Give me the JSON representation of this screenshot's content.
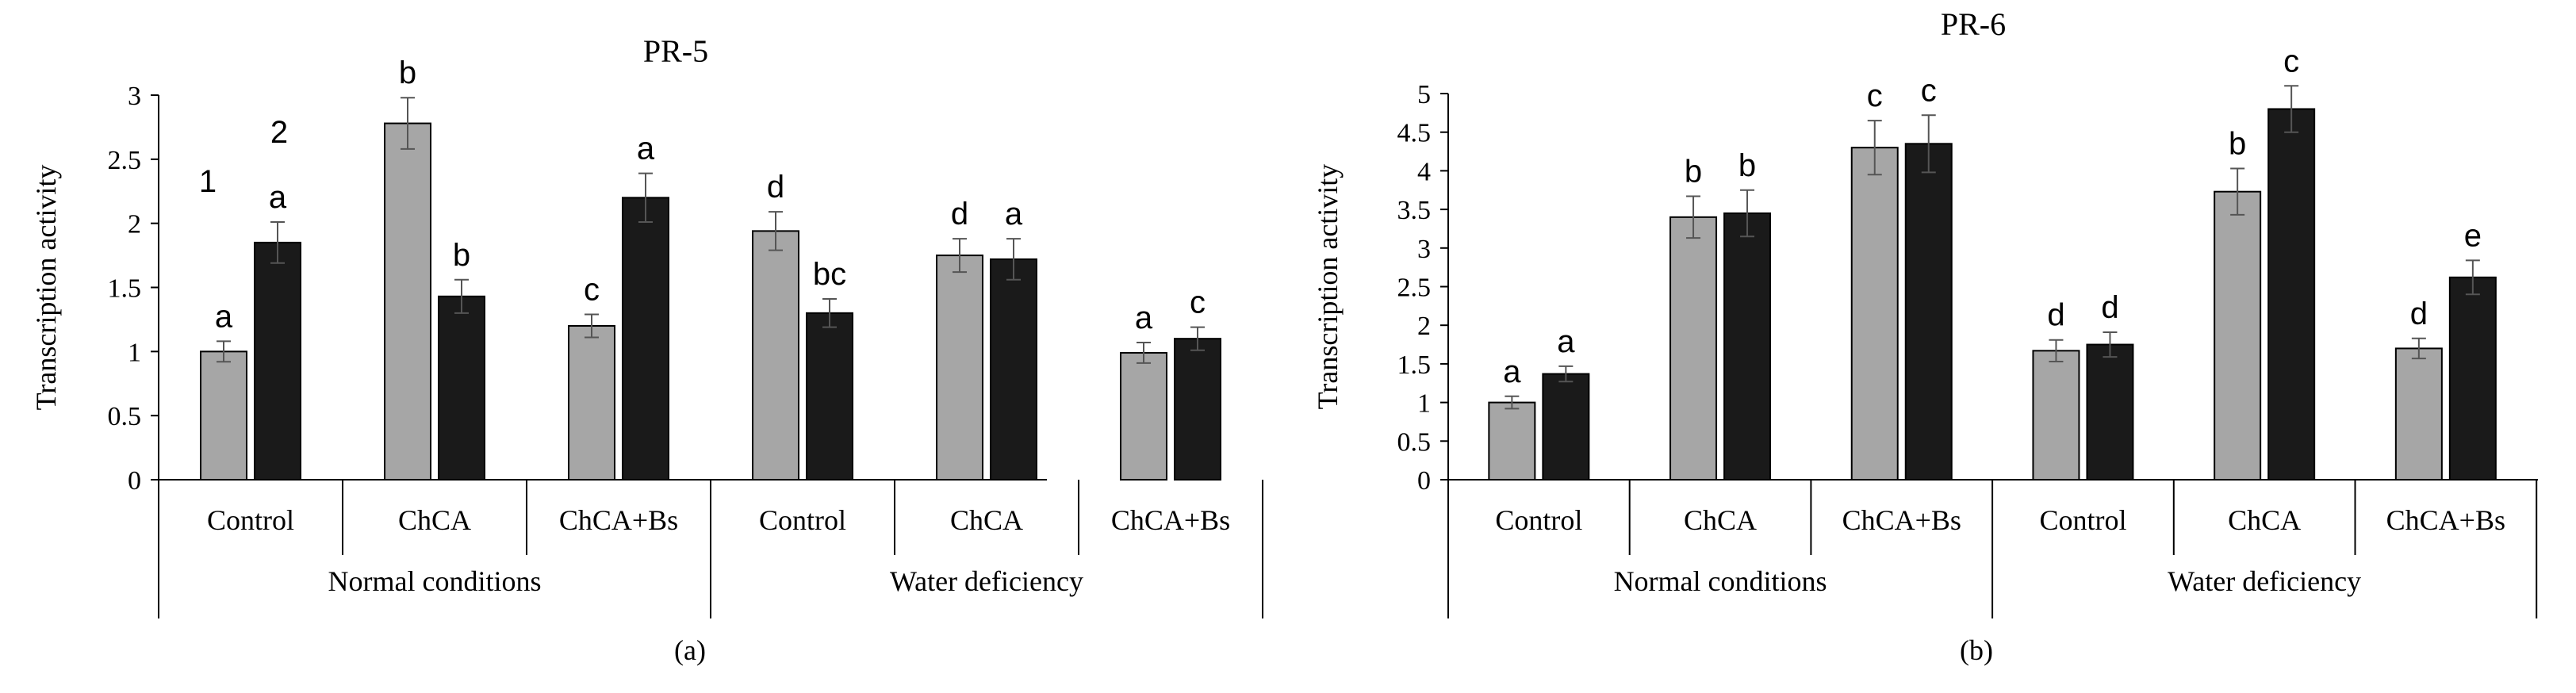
{
  "chart_data": [
    {
      "type": "bar",
      "title": "PR-5",
      "panel_label": "(a)",
      "ylabel": "Transcription activity",
      "ylim": [
        0,
        3
      ],
      "yticks": [
        "0",
        "0.5",
        "1",
        "1.5",
        "2",
        "2.5",
        "3"
      ],
      "categories": [
        "Control",
        "ChCA",
        "ChCA+Bs",
        "Control",
        "ChCA",
        "ChCA+Bs"
      ],
      "groups": [
        "Normal conditions",
        "Water deficiency"
      ],
      "legend_markers": [
        "1",
        "2"
      ],
      "series": [
        {
          "name": "1",
          "color": "#a6a6a6",
          "values": [
            1.0,
            2.78,
            1.2,
            1.94,
            1.75,
            0.99
          ],
          "errors": [
            0.08,
            0.2,
            0.09,
            0.15,
            0.13,
            0.08
          ],
          "letters": [
            "a",
            "b",
            "c",
            "d",
            "d",
            "a"
          ]
        },
        {
          "name": "2",
          "color": "#1a1a1a",
          "values": [
            1.85,
            1.43,
            2.2,
            1.3,
            1.72,
            1.1
          ],
          "errors": [
            0.16,
            0.13,
            0.19,
            0.11,
            0.16,
            0.09
          ],
          "letters": [
            "a",
            "b",
            "a",
            "bc",
            "a",
            "c"
          ]
        }
      ]
    },
    {
      "type": "bar",
      "title": "PR-6",
      "panel_label": "(b)",
      "ylabel": "Transcription activity",
      "ylim": [
        0,
        5
      ],
      "yticks": [
        "0",
        "0.5",
        "1",
        "1.5",
        "2",
        "2.5",
        "3",
        "3.5",
        "4",
        "4.5",
        "5"
      ],
      "categories": [
        "Control",
        "ChCA",
        "ChCA+Bs",
        "Control",
        "ChCA",
        "ChCA+Bs"
      ],
      "groups": [
        "Normal conditions",
        "Water deficiency"
      ],
      "series": [
        {
          "name": "1",
          "color": "#a6a6a6",
          "values": [
            1.0,
            3.4,
            4.3,
            1.67,
            3.73,
            1.7
          ],
          "errors": [
            0.08,
            0.27,
            0.35,
            0.14,
            0.3,
            0.13
          ],
          "letters": [
            "a",
            "b",
            "c",
            "d",
            "b",
            "d"
          ]
        },
        {
          "name": "2",
          "color": "#1a1a1a",
          "values": [
            1.37,
            3.45,
            4.35,
            1.75,
            4.8,
            2.62
          ],
          "errors": [
            0.1,
            0.3,
            0.37,
            0.16,
            0.3,
            0.22
          ],
          "letters": [
            "a",
            "b",
            "c",
            "d",
            "c",
            "e"
          ]
        }
      ]
    }
  ]
}
